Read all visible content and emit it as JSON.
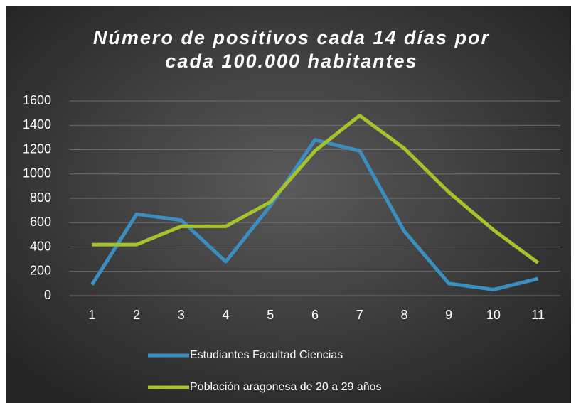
{
  "chart_data": {
    "type": "line",
    "title": "Número de positivos cada 14 días por cada 100.000 habitantes",
    "categories": [
      1,
      2,
      3,
      4,
      5,
      6,
      7,
      8,
      9,
      10,
      11
    ],
    "series": [
      {
        "name": "Estudiantes Facultad Ciencias",
        "color": "#3b8fc0",
        "values": [
          90,
          670,
          620,
          280,
          740,
          1280,
          1190,
          530,
          100,
          50,
          140
        ]
      },
      {
        "name": "Población aragonesa de 20 a 29 años",
        "color": "#a5c32a",
        "values": [
          420,
          420,
          570,
          570,
          770,
          1190,
          1480,
          1210,
          850,
          540,
          270
        ]
      }
    ],
    "ylim": [
      0,
      1600
    ],
    "yticks": [
      0,
      200,
      400,
      600,
      800,
      1000,
      1200,
      1400,
      1600
    ],
    "grid": true,
    "legend": "bottom"
  }
}
